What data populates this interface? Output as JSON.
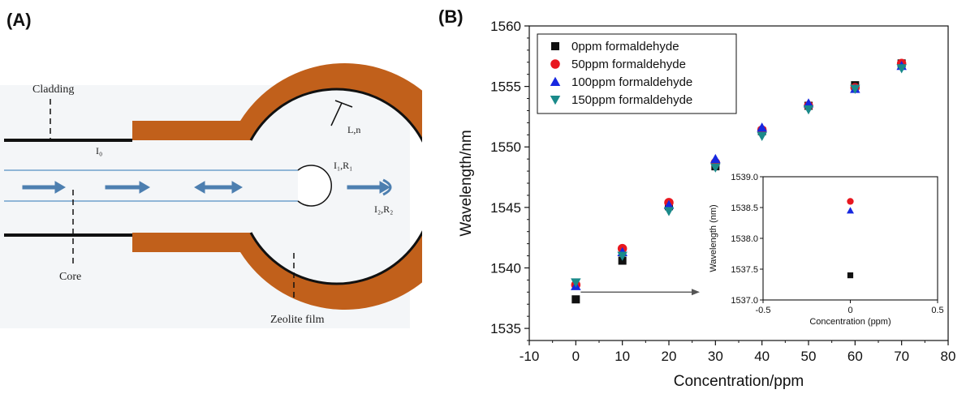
{
  "panels": {
    "a_label": "(A)",
    "b_label": "(B)"
  },
  "diagram": {
    "labels": {
      "cladding": "Cladding",
      "core": "Core",
      "zeolite": "Zeolite film",
      "i0": "I₀",
      "ln": "L,n",
      "i1r1": "I₁,R₁",
      "i2r2": "I₂,R₂"
    },
    "colors": {
      "film": "#c1601b",
      "arrow": "#4d7fb0",
      "line": "#111111",
      "core_line": "#6fa0cc"
    }
  },
  "chart_data": [
    {
      "type": "scatter",
      "title": "",
      "xlabel": "Concentration/ppm",
      "ylabel": "Wavelength/nm",
      "xlim": [
        -10,
        80
      ],
      "ylim": [
        1534,
        1560
      ],
      "x_ticks": [
        -10,
        0,
        10,
        20,
        30,
        40,
        50,
        60,
        70,
        80
      ],
      "y_ticks": [
        1535,
        1540,
        1545,
        1550,
        1555,
        1560
      ],
      "legend_position": "top-left",
      "x": [
        0,
        10,
        20,
        30,
        40,
        50,
        60,
        70
      ],
      "series": [
        {
          "name": "0ppm formaldehyde",
          "marker": "square",
          "color": "#111111",
          "values": [
            1537.4,
            1540.6,
            1545.1,
            1548.4,
            1551.3,
            1553.4,
            1555.1,
            1556.9
          ]
        },
        {
          "name": "50ppm formaldehyde",
          "marker": "circle",
          "color": "#e8171f",
          "values": [
            1538.6,
            1541.6,
            1545.4,
            1548.7,
            1551.4,
            1553.4,
            1554.9,
            1556.9
          ]
        },
        {
          "name": "100ppm formaldehyde",
          "marker": "triangle-up",
          "color": "#1728e0",
          "values": [
            1538.5,
            1541.3,
            1545.2,
            1549.0,
            1551.6,
            1553.6,
            1554.8,
            1556.7
          ]
        },
        {
          "name": "150ppm formaldehyde",
          "marker": "triangle-down",
          "color": "#1a8a8a",
          "values": [
            1538.8,
            1541.0,
            1544.7,
            1548.3,
            1550.9,
            1553.1,
            1554.8,
            1556.5
          ]
        }
      ]
    },
    {
      "type": "scatter",
      "title": "",
      "xlabel": "Concentration (ppm)",
      "ylabel": "Wavelength (nm)",
      "xlim": [
        -0.5,
        0.5
      ],
      "ylim": [
        1537.0,
        1539.0
      ],
      "x_ticks": [
        -0.5,
        0,
        0.5
      ],
      "x_tick_labels": [
        "-0.5",
        "0",
        "0.5"
      ],
      "y_ticks": [
        1537.0,
        1537.5,
        1538.0,
        1538.5,
        1539.0
      ],
      "y_tick_labels": [
        "1537.0",
        "1537.5",
        "1538.0",
        "1538.5",
        "1539.0"
      ],
      "x": [
        0
      ],
      "series": [
        {
          "marker": "square",
          "color": "#111111",
          "values": [
            1537.4
          ]
        },
        {
          "marker": "circle",
          "color": "#e8171f",
          "values": [
            1538.6
          ]
        },
        {
          "marker": "triangle-up",
          "color": "#1728e0",
          "values": [
            1538.45
          ]
        }
      ]
    }
  ]
}
